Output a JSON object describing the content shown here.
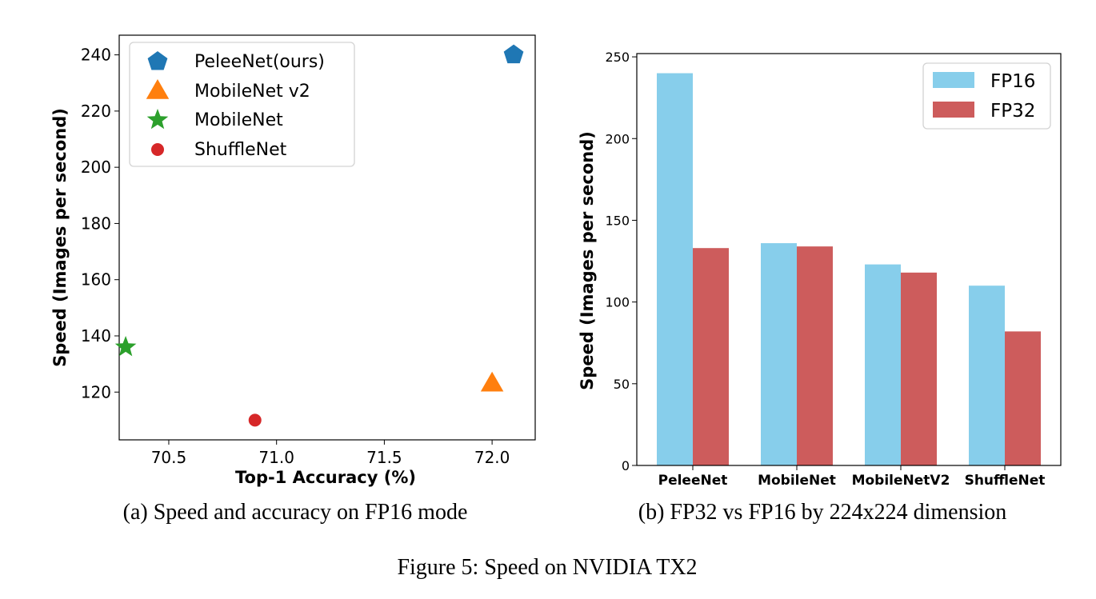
{
  "figure_caption": "Figure 5: Speed on NVIDIA TX2",
  "colors": {
    "pelee": "#1f77b4",
    "mobilenet_v2": "#ff7f0e",
    "mobilenet": "#2ca02c",
    "shufflenet": "#d62728",
    "fp16": "#87ceeb",
    "fp32": "#cd5c5c"
  },
  "chart_data": [
    {
      "type": "scatter",
      "caption": "(a) Speed and accuracy on FP16 mode",
      "xlabel": "Top-1 Accuracy (%)",
      "ylabel": "Speed (Images per second)",
      "xlim": [
        70.27,
        72.2
      ],
      "ylim": [
        103,
        247
      ],
      "xticks": [
        "70.5",
        "71.0",
        "71.5",
        "72.0"
      ],
      "yticks": [
        "120",
        "140",
        "160",
        "180",
        "200",
        "220",
        "240"
      ],
      "grid": false,
      "legend_position": "upper-left",
      "series": [
        {
          "name": "PeleeNet(ours)",
          "marker": "pentagon",
          "x": 72.1,
          "y": 240
        },
        {
          "name": "MobileNet v2",
          "marker": "triangle",
          "x": 72.0,
          "y": 123
        },
        {
          "name": "MobileNet",
          "marker": "star",
          "x": 70.3,
          "y": 136
        },
        {
          "name": "ShuffleNet",
          "marker": "circle",
          "x": 70.9,
          "y": 110
        }
      ]
    },
    {
      "type": "bar",
      "caption": "(b) FP32 vs FP16 by 224x224 dimension",
      "xlabel": "",
      "ylabel": "Speed (Images per second)",
      "ylim": [
        0,
        252
      ],
      "yticks": [
        "0",
        "50",
        "100",
        "150",
        "200",
        "250"
      ],
      "categories": [
        "PeleeNet",
        "MobileNet",
        "MobileNetV2",
        "ShuffleNet"
      ],
      "grid": false,
      "legend_position": "upper-right",
      "series": [
        {
          "name": "FP16",
          "values": [
            240,
            136,
            123,
            110
          ]
        },
        {
          "name": "FP32",
          "values": [
            133,
            134,
            118,
            82
          ]
        }
      ]
    }
  ]
}
